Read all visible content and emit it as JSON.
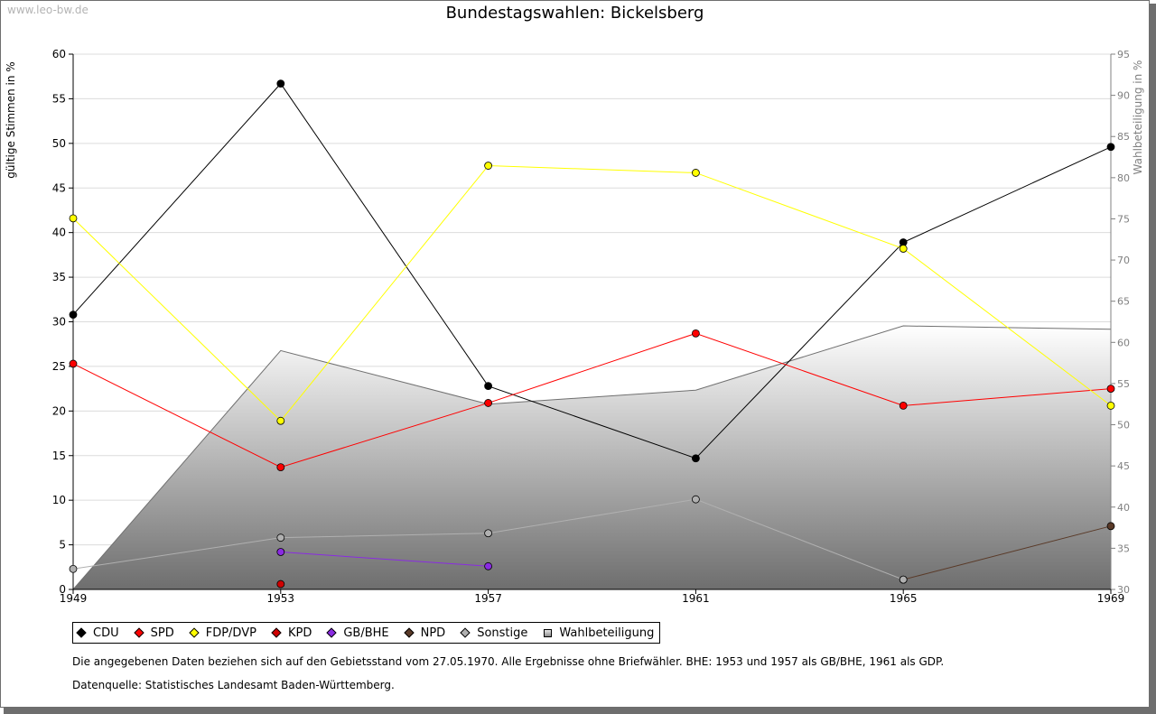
{
  "watermark": "www.leo-bw.de",
  "note": "Die angegebenen Daten beziehen sich auf den Gebietsstand vom 27.05.1970. Alle Ergebnisse ohne Briefwähler. BHE: 1953 und 1957 als GB/BHE, 1961 als GDP.",
  "source": "Datenquelle: Statistisches Landesamt Baden-Württemberg.",
  "chart_data": {
    "type": "line",
    "title": "Bundestagswahlen: Bickelsberg",
    "ylabel": "gültige Stimmen in %",
    "y2label": "Wahlbeteiligung in %",
    "x": [
      1949,
      1953,
      1957,
      1961,
      1965,
      1969
    ],
    "ylim": [
      0,
      60
    ],
    "y2lim": [
      30,
      95
    ],
    "yticks": [
      0,
      5,
      10,
      15,
      20,
      25,
      30,
      35,
      40,
      45,
      50,
      55,
      60
    ],
    "y2ticks": [
      30,
      35,
      40,
      45,
      50,
      55,
      60,
      65,
      70,
      75,
      80,
      85,
      90,
      95
    ],
    "grid": true,
    "legend_position": "bottom",
    "series": [
      {
        "name": "CDU",
        "color": "#000000",
        "values": [
          30.8,
          56.7,
          22.8,
          14.7,
          38.9,
          49.6
        ]
      },
      {
        "name": "SPD",
        "color": "#ff0000",
        "values": [
          25.3,
          13.7,
          20.9,
          28.7,
          20.6,
          22.5
        ]
      },
      {
        "name": "FDP/DVP",
        "color": "#ffff00",
        "values": [
          41.6,
          18.9,
          47.5,
          46.7,
          38.2,
          20.6
        ]
      },
      {
        "name": "KPD",
        "color": "#d00000",
        "values": [
          null,
          0.6,
          null,
          null,
          null,
          null
        ]
      },
      {
        "name": "GB/BHE",
        "color": "#8a2be2",
        "values": [
          null,
          4.2,
          2.6,
          null,
          null,
          null
        ]
      },
      {
        "name": "NPD",
        "color": "#5a3a28",
        "values": [
          null,
          null,
          null,
          null,
          1.1,
          7.1
        ]
      },
      {
        "name": "Sonstige",
        "color": "#b0b0b0",
        "values": [
          2.3,
          5.8,
          6.3,
          10.1,
          1.1,
          null
        ]
      },
      {
        "name": "Wahlbeteiligung",
        "color": "#808080",
        "axis": "right",
        "area": true,
        "values": [
          30.0,
          59.0,
          52.5,
          54.2,
          62.0,
          61.6
        ]
      }
    ]
  }
}
